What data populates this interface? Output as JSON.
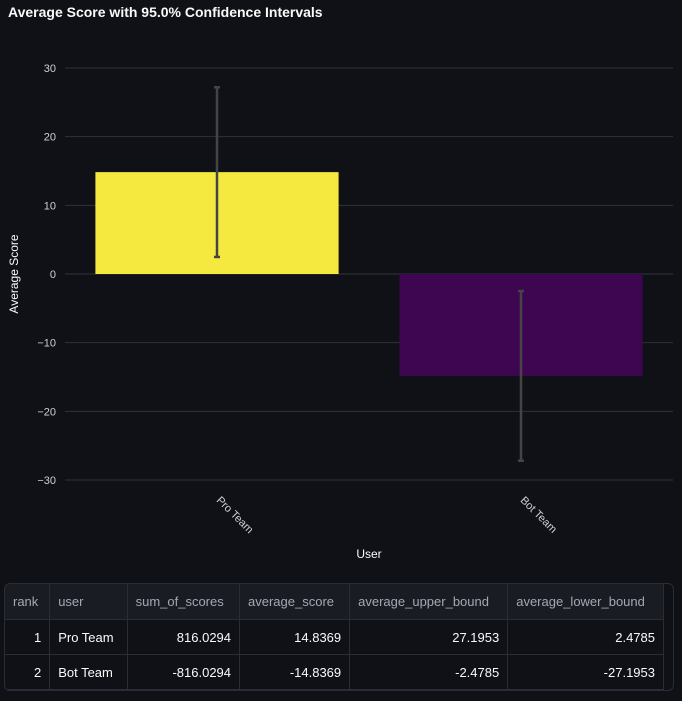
{
  "chart_data": {
    "type": "bar",
    "title": "Average Score with 95.0% Confidence Intervals",
    "xlabel": "User",
    "ylabel": "Average Score",
    "categories": [
      "Pro Team",
      "Bot Team"
    ],
    "values": [
      14.8369,
      -14.8369
    ],
    "error_upper": [
      27.1953,
      -2.4785
    ],
    "error_lower": [
      2.4785,
      -27.1953
    ],
    "colors": [
      "#f5e93f",
      "#3e0651"
    ],
    "ylim": [
      -30,
      30
    ],
    "yticks": [
      30,
      20,
      10,
      0,
      -10,
      -20,
      -30
    ],
    "grid": true
  },
  "table": {
    "columns": [
      "rank",
      "user",
      "sum_of_scores",
      "average_score",
      "average_upper_bound",
      "average_lower_bound"
    ],
    "rows": [
      [
        "1",
        "Pro Team",
        "816.0294",
        "14.8369",
        "27.1953",
        "2.4785"
      ],
      [
        "2",
        "Bot Team",
        "-816.0294",
        "-14.8369",
        "-2.4785",
        "-27.1953"
      ]
    ]
  }
}
